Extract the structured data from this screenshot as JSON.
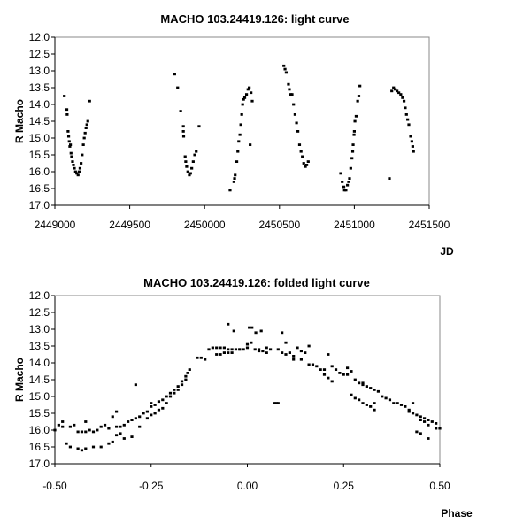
{
  "chart_data": [
    {
      "type": "scatter",
      "title": "MACHO 103.24419.126: light curve",
      "xlabel": "JD",
      "ylabel": "R Macho",
      "xlim": [
        2449000,
        2451500
      ],
      "ylim": [
        17.0,
        12.0
      ],
      "y_inverted": true,
      "grid": false,
      "xticks": [
        "2449000",
        "2449500",
        "2450000",
        "2450500",
        "2451000",
        "2451500"
      ],
      "yticks": [
        "12.0",
        "12.5",
        "13.0",
        "13.5",
        "14.0",
        "14.5",
        "15.0",
        "15.5",
        "16.0",
        "16.5",
        "17.0"
      ],
      "points": [
        [
          2449063,
          13.75
        ],
        [
          2449080,
          14.15
        ],
        [
          2449082,
          14.3
        ],
        [
          2449088,
          14.8
        ],
        [
          2449092,
          14.95
        ],
        [
          2449096,
          15.1
        ],
        [
          2449100,
          15.25
        ],
        [
          2449104,
          15.2
        ],
        [
          2449108,
          15.45
        ],
        [
          2449112,
          15.55
        ],
        [
          2449118,
          15.7
        ],
        [
          2449124,
          15.8
        ],
        [
          2449130,
          15.9
        ],
        [
          2449138,
          16.0
        ],
        [
          2449146,
          16.05
        ],
        [
          2449155,
          16.1
        ],
        [
          2449162,
          16.0
        ],
        [
          2449168,
          15.9
        ],
        [
          2449175,
          15.75
        ],
        [
          2449182,
          15.5
        ],
        [
          2449190,
          15.2
        ],
        [
          2449196,
          15.0
        ],
        [
          2449202,
          14.85
        ],
        [
          2449208,
          14.7
        ],
        [
          2449214,
          14.6
        ],
        [
          2449220,
          14.5
        ],
        [
          2449232,
          13.9
        ],
        [
          2449800,
          13.1
        ],
        [
          2449820,
          13.5
        ],
        [
          2449840,
          14.2
        ],
        [
          2449858,
          14.65
        ],
        [
          2449858,
          14.8
        ],
        [
          2449860,
          14.95
        ],
        [
          2449870,
          15.55
        ],
        [
          2449874,
          15.7
        ],
        [
          2449880,
          15.85
        ],
        [
          2449888,
          16.0
        ],
        [
          2449898,
          16.1
        ],
        [
          2449906,
          16.05
        ],
        [
          2449914,
          15.9
        ],
        [
          2449924,
          15.7
        ],
        [
          2449934,
          15.5
        ],
        [
          2449944,
          15.4
        ],
        [
          2449963,
          14.65
        ],
        [
          2450170,
          16.55
        ],
        [
          2450196,
          16.3
        ],
        [
          2450200,
          16.2
        ],
        [
          2450204,
          16.1
        ],
        [
          2450215,
          15.7
        ],
        [
          2450222,
          15.4
        ],
        [
          2450228,
          15.1
        ],
        [
          2450236,
          14.9
        ],
        [
          2450242,
          14.6
        ],
        [
          2450248,
          14.3
        ],
        [
          2450254,
          14.0
        ],
        [
          2450260,
          13.85
        ],
        [
          2450268,
          13.8
        ],
        [
          2450280,
          13.7
        ],
        [
          2450290,
          13.55
        ],
        [
          2450298,
          13.5
        ],
        [
          2450310,
          13.65
        ],
        [
          2450318,
          13.9
        ],
        [
          2450304,
          15.2
        ],
        [
          2450529,
          12.85
        ],
        [
          2450537,
          12.95
        ],
        [
          2450545,
          13.05
        ],
        [
          2450560,
          13.4
        ],
        [
          2450566,
          13.55
        ],
        [
          2450574,
          13.7
        ],
        [
          2450584,
          13.7
        ],
        [
          2450594,
          14.0
        ],
        [
          2450604,
          14.3
        ],
        [
          2450614,
          14.55
        ],
        [
          2450623,
          14.8
        ],
        [
          2450634,
          15.2
        ],
        [
          2450644,
          15.4
        ],
        [
          2450653,
          15.55
        ],
        [
          2450662,
          15.75
        ],
        [
          2450673,
          15.85
        ],
        [
          2450682,
          15.8
        ],
        [
          2450692,
          15.7
        ],
        [
          2450909,
          16.05
        ],
        [
          2450919,
          16.3
        ],
        [
          2450930,
          16.45
        ],
        [
          2450934,
          16.55
        ],
        [
          2450944,
          16.55
        ],
        [
          2450954,
          16.4
        ],
        [
          2450962,
          16.3
        ],
        [
          2450968,
          16.2
        ],
        [
          2450976,
          15.9
        ],
        [
          2450984,
          15.6
        ],
        [
          2450989,
          15.4
        ],
        [
          2450992,
          15.2
        ],
        [
          2450998,
          14.9
        ],
        [
          2451000,
          14.8
        ],
        [
          2451004,
          14.5
        ],
        [
          2451012,
          14.35
        ],
        [
          2451022,
          13.9
        ],
        [
          2451030,
          13.75
        ],
        [
          2451037,
          13.45
        ],
        [
          2451234,
          16.2
        ],
        [
          2451250,
          13.6
        ],
        [
          2451262,
          13.5
        ],
        [
          2451273,
          13.55
        ],
        [
          2451285,
          13.6
        ],
        [
          2451297,
          13.65
        ],
        [
          2451310,
          13.7
        ],
        [
          2451322,
          13.8
        ],
        [
          2451332,
          13.9
        ],
        [
          2451340,
          14.1
        ],
        [
          2451348,
          14.3
        ],
        [
          2451356,
          14.45
        ],
        [
          2451364,
          14.6
        ],
        [
          2451376,
          14.95
        ],
        [
          2451384,
          15.1
        ],
        [
          2451390,
          15.25
        ],
        [
          2451395,
          15.4
        ]
      ]
    },
    {
      "type": "scatter",
      "title": "MACHO 103.24419.126: folded light curve",
      "xlabel": "Phase",
      "ylabel": "R Macho",
      "xlim": [
        -0.5,
        0.5
      ],
      "ylim": [
        17.0,
        12.0
      ],
      "y_inverted": true,
      "grid": false,
      "xticks": [
        "-0.50",
        "-0.25",
        "0.00",
        "0.25",
        "0.50"
      ],
      "yticks": [
        "12.0",
        "12.5",
        "13.0",
        "13.5",
        "14.0",
        "14.5",
        "15.0",
        "15.5",
        "16.0",
        "16.5",
        "17.0"
      ],
      "points": [
        [
          -0.5,
          16.0
        ],
        [
          -0.49,
          15.85
        ],
        [
          -0.48,
          15.75
        ],
        [
          -0.46,
          15.9
        ],
        [
          -0.45,
          15.85
        ],
        [
          -0.44,
          16.05
        ],
        [
          -0.43,
          16.05
        ],
        [
          -0.42,
          16.05
        ],
        [
          -0.41,
          16.0
        ],
        [
          -0.4,
          16.05
        ],
        [
          -0.39,
          16.0
        ],
        [
          -0.38,
          15.9
        ],
        [
          -0.37,
          15.85
        ],
        [
          -0.36,
          15.95
        ],
        [
          -0.34,
          15.9
        ],
        [
          -0.33,
          15.9
        ],
        [
          -0.32,
          15.85
        ],
        [
          -0.31,
          15.75
        ],
        [
          -0.3,
          15.7
        ],
        [
          -0.29,
          15.65
        ],
        [
          -0.28,
          15.6
        ],
        [
          -0.27,
          15.5
        ],
        [
          -0.26,
          15.45
        ],
        [
          -0.25,
          15.3
        ],
        [
          -0.24,
          15.25
        ],
        [
          -0.23,
          15.15
        ],
        [
          -0.22,
          15.1
        ],
        [
          -0.21,
          15.0
        ],
        [
          -0.2,
          14.9
        ],
        [
          -0.19,
          14.8
        ],
        [
          -0.18,
          14.7
        ],
        [
          -0.17,
          14.55
        ],
        [
          -0.16,
          14.4
        ],
        [
          -0.155,
          14.3
        ],
        [
          -0.15,
          14.2
        ],
        [
          -0.47,
          16.4
        ],
        [
          -0.46,
          16.5
        ],
        [
          -0.44,
          16.55
        ],
        [
          -0.43,
          16.6
        ],
        [
          -0.42,
          16.55
        ],
        [
          -0.4,
          16.5
        ],
        [
          -0.38,
          16.5
        ],
        [
          -0.36,
          16.4
        ],
        [
          -0.35,
          16.35
        ],
        [
          -0.34,
          16.15
        ],
        [
          -0.33,
          16.1
        ],
        [
          -0.32,
          16.25
        ],
        [
          -0.3,
          16.2
        ],
        [
          -0.28,
          15.9
        ],
        [
          -0.26,
          15.65
        ],
        [
          -0.25,
          15.55
        ],
        [
          -0.24,
          15.5
        ],
        [
          -0.23,
          15.4
        ],
        [
          -0.22,
          15.35
        ],
        [
          -0.21,
          15.2
        ],
        [
          -0.2,
          15.0
        ],
        [
          -0.19,
          14.9
        ],
        [
          -0.18,
          14.8
        ],
        [
          -0.17,
          14.65
        ],
        [
          -0.16,
          14.5
        ],
        [
          -0.35,
          15.6
        ],
        [
          -0.34,
          15.45
        ],
        [
          -0.42,
          15.75
        ],
        [
          -0.29,
          14.65
        ],
        [
          -0.48,
          15.9
        ],
        [
          -0.25,
          15.2
        ],
        [
          -0.13,
          13.85
        ],
        [
          -0.12,
          13.85
        ],
        [
          -0.11,
          13.9
        ],
        [
          -0.1,
          13.6
        ],
        [
          -0.09,
          13.55
        ],
        [
          -0.08,
          13.55
        ],
        [
          -0.07,
          13.55
        ],
        [
          -0.06,
          13.55
        ],
        [
          -0.05,
          13.6
        ],
        [
          -0.04,
          13.6
        ],
        [
          -0.03,
          13.6
        ],
        [
          -0.02,
          13.6
        ],
        [
          0.0,
          13.55
        ],
        [
          0.02,
          13.6
        ],
        [
          0.03,
          13.6
        ],
        [
          0.04,
          13.65
        ],
        [
          0.05,
          13.55
        ],
        [
          0.06,
          13.6
        ],
        [
          0.08,
          13.6
        ],
        [
          -0.08,
          13.75
        ],
        [
          -0.07,
          13.75
        ],
        [
          -0.06,
          13.7
        ],
        [
          -0.05,
          13.7
        ],
        [
          -0.04,
          13.7
        ],
        [
          -0.02,
          13.6
        ],
        [
          -0.01,
          13.6
        ],
        [
          0.0,
          13.45
        ],
        [
          0.01,
          13.4
        ],
        [
          0.03,
          13.65
        ],
        [
          0.05,
          13.7
        ],
        [
          -0.05,
          12.85
        ],
        [
          -0.035,
          13.05
        ],
        [
          0.005,
          12.95
        ],
        [
          0.012,
          12.95
        ],
        [
          0.022,
          13.1
        ],
        [
          0.036,
          13.05
        ],
        [
          0.09,
          13.1
        ],
        [
          0.1,
          13.4
        ],
        [
          0.07,
          15.2
        ],
        [
          0.075,
          15.2
        ],
        [
          0.08,
          15.2
        ],
        [
          0.09,
          13.7
        ],
        [
          0.1,
          13.75
        ],
        [
          0.11,
          13.7
        ],
        [
          0.12,
          13.8
        ],
        [
          0.13,
          13.55
        ],
        [
          0.14,
          13.65
        ],
        [
          0.15,
          13.7
        ],
        [
          0.16,
          13.5
        ],
        [
          0.17,
          14.05
        ],
        [
          0.18,
          14.1
        ],
        [
          0.19,
          14.2
        ],
        [
          0.2,
          14.2
        ],
        [
          0.22,
          14.1
        ],
        [
          0.23,
          14.2
        ],
        [
          0.24,
          14.3
        ],
        [
          0.25,
          14.35
        ],
        [
          0.26,
          14.35
        ],
        [
          0.28,
          14.5
        ],
        [
          0.29,
          14.6
        ],
        [
          0.3,
          14.65
        ],
        [
          0.31,
          14.7
        ],
        [
          0.32,
          14.75
        ],
        [
          0.33,
          14.8
        ],
        [
          0.34,
          14.85
        ],
        [
          0.35,
          15.0
        ],
        [
          0.36,
          15.05
        ],
        [
          0.37,
          15.1
        ],
        [
          0.38,
          15.2
        ],
        [
          0.39,
          15.2
        ],
        [
          0.4,
          15.25
        ],
        [
          0.41,
          15.3
        ],
        [
          0.42,
          15.4
        ],
        [
          0.43,
          15.5
        ],
        [
          0.44,
          15.55
        ],
        [
          0.45,
          15.6
        ],
        [
          0.46,
          15.65
        ],
        [
          0.47,
          15.7
        ],
        [
          0.48,
          15.75
        ],
        [
          0.49,
          15.8
        ],
        [
          0.5,
          15.95
        ],
        [
          0.12,
          13.9
        ],
        [
          0.14,
          13.9
        ],
        [
          0.16,
          14.05
        ],
        [
          0.2,
          14.35
        ],
        [
          0.21,
          14.45
        ],
        [
          0.22,
          14.55
        ],
        [
          0.27,
          14.95
        ],
        [
          0.28,
          15.05
        ],
        [
          0.29,
          15.1
        ],
        [
          0.3,
          15.2
        ],
        [
          0.31,
          15.25
        ],
        [
          0.32,
          15.3
        ],
        [
          0.33,
          15.4
        ],
        [
          0.21,
          13.75
        ],
        [
          0.26,
          14.15
        ],
        [
          0.27,
          14.25
        ],
        [
          0.33,
          15.2
        ],
        [
          0.43,
          15.2
        ],
        [
          0.44,
          16.05
        ],
        [
          0.45,
          16.1
        ],
        [
          0.47,
          16.25
        ],
        [
          0.42,
          15.45
        ],
        [
          0.45,
          15.7
        ],
        [
          0.46,
          15.75
        ],
        [
          0.47,
          15.85
        ],
        [
          0.49,
          15.95
        ],
        [
          0.3,
          14.6
        ]
      ]
    }
  ]
}
